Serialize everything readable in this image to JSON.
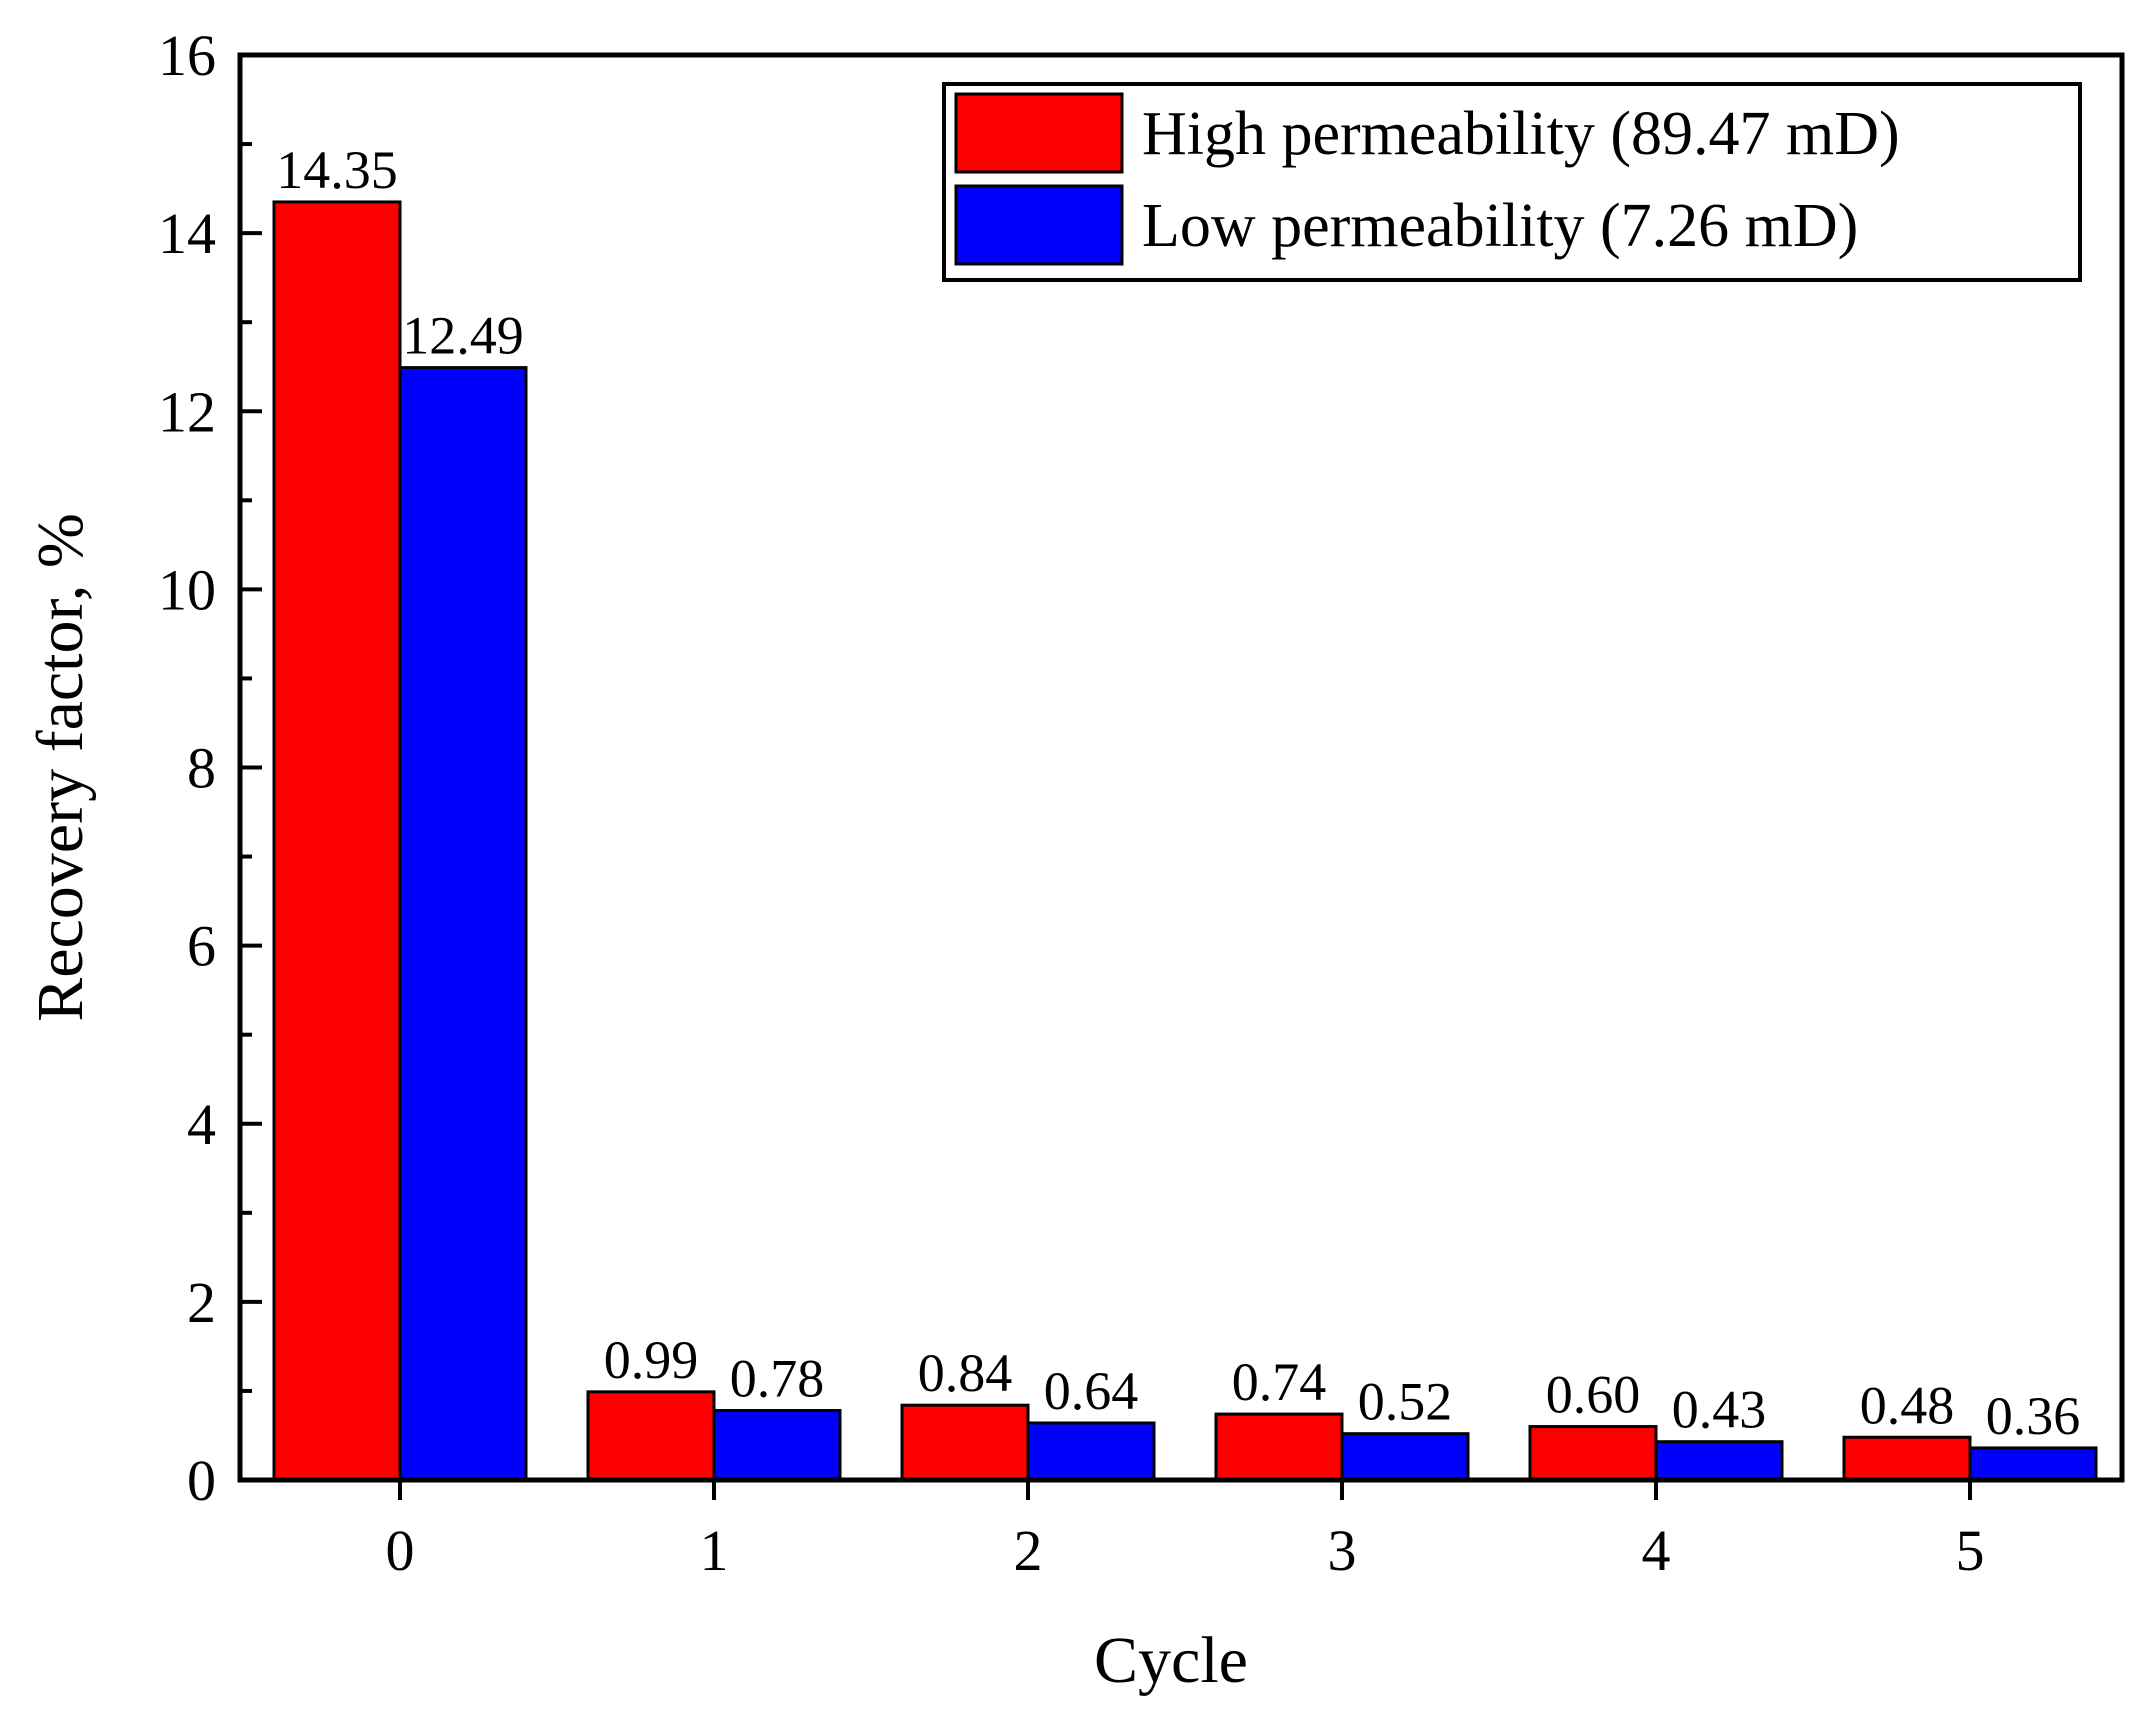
{
  "chart_data": {
    "type": "bar",
    "title": "",
    "xlabel": "Cycle",
    "ylabel": "Recovery factor, %",
    "categories": [
      "0",
      "1",
      "2",
      "3",
      "4",
      "5"
    ],
    "ylim": [
      0,
      16
    ],
    "yticks": [
      "0",
      "2",
      "4",
      "6",
      "8",
      "10",
      "12",
      "14",
      "16"
    ],
    "grid": false,
    "legend_position": "top-right",
    "series": [
      {
        "name": "High permeability (89.47 mD)",
        "color": "#ff0000",
        "values": [
          14.35,
          0.99,
          0.84,
          0.74,
          0.6,
          0.48
        ],
        "labels": [
          "14.35",
          "0.99",
          "0.84",
          "0.74",
          "0.60",
          "0.48"
        ]
      },
      {
        "name": "Low permeability (7.26 mD)",
        "color": "#0000ff",
        "values": [
          12.49,
          0.78,
          0.64,
          0.52,
          0.43,
          0.36
        ],
        "labels": [
          "12.49",
          "0.78",
          "0.64",
          "0.52",
          "0.43",
          "0.36"
        ]
      }
    ]
  }
}
